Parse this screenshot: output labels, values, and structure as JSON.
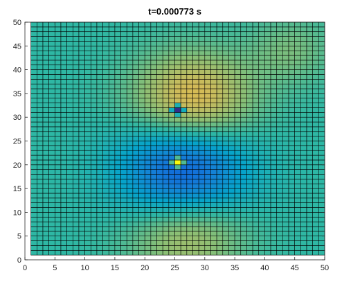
{
  "chart_data": {
    "type": "heatmap",
    "title": "t=0.000773 s",
    "xlabel": "",
    "ylabel": "",
    "xlim": [
      0,
      50
    ],
    "ylim": [
      0,
      50
    ],
    "x_ticks": [
      "0",
      "5",
      "10",
      "15",
      "20",
      "25",
      "30",
      "35",
      "40",
      "45",
      "50"
    ],
    "y_ticks": [
      "0",
      "5",
      "10",
      "15",
      "20",
      "25",
      "30",
      "35",
      "40",
      "45",
      "50"
    ],
    "grid_extent": {
      "x": [
        1,
        50
      ],
      "y": [
        1,
        50
      ],
      "cells_per_axis": 49
    },
    "edge_color": "#000000",
    "colormap": [
      "#352a87",
      "#0f5cdd",
      "#1481d6",
      "#06a4ca",
      "#2eb7a4",
      "#87bf77",
      "#d1bb59",
      "#fec832",
      "#f9fb0e"
    ],
    "field_model": {
      "base": 0.5,
      "components": [
        {
          "x": 28.0,
          "y": 33.5,
          "sigma": 7.0,
          "amplitude": 0.3
        },
        {
          "x": 26.5,
          "y": 18.0,
          "sigma": 7.5,
          "amplitude": -0.4
        },
        {
          "x": 27.0,
          "y": 6.5,
          "sigma": 7.0,
          "amplitude": 0.24
        },
        {
          "x": 44.5,
          "y": 44.0,
          "sigma": 5.0,
          "amplitude": 0.1
        }
      ],
      "special_cells": [
        {
          "x": 25,
          "y": 31,
          "value": 0.0
        },
        {
          "x": 25,
          "y": 20,
          "value": 1.0
        },
        {
          "x": 25,
          "y": 32,
          "value": 0.45
        },
        {
          "x": 24,
          "y": 31,
          "value": 0.42
        },
        {
          "x": 26,
          "y": 31,
          "value": 0.42
        },
        {
          "x": 25,
          "y": 30,
          "value": 0.45
        },
        {
          "x": 25,
          "y": 21,
          "value": 0.55
        },
        {
          "x": 24,
          "y": 20,
          "value": 0.55
        },
        {
          "x": 26,
          "y": 20,
          "value": 0.55
        },
        {
          "x": 25,
          "y": 19,
          "value": 0.55
        }
      ]
    }
  }
}
